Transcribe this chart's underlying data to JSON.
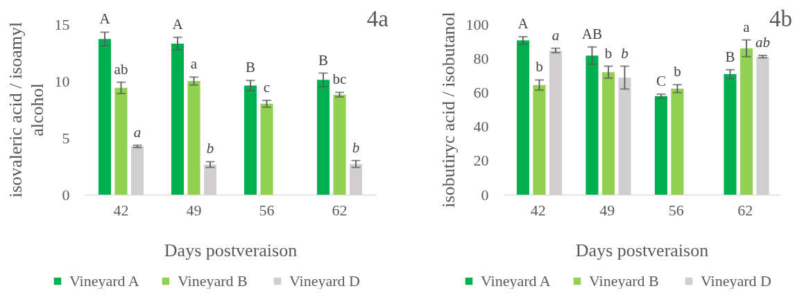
{
  "chart_data": [
    {
      "type": "bar",
      "annotations": [
        "4a"
      ],
      "xlabel": "Days postveraison",
      "ylabel": "isovaleric acid / isoamyl alcohol",
      "categories": [
        "42",
        "49",
        "56",
        "62"
      ],
      "series": [
        {
          "name": "Vineyard A",
          "color": "#00b050",
          "values": [
            13.7,
            13.3,
            9.6,
            10.1
          ],
          "errors": [
            0.6,
            0.55,
            0.45,
            0.6
          ],
          "value_labels": [
            "A",
            "A",
            "B",
            "B"
          ]
        },
        {
          "name": "Vineyard  B",
          "color": "#92d050",
          "values": [
            9.4,
            10.0,
            8.0,
            8.8
          ],
          "errors": [
            0.5,
            0.35,
            0.3,
            0.2
          ],
          "value_labels": [
            "ab",
            "a",
            "c",
            "bc"
          ]
        },
        {
          "name": "Vineyard D",
          "color": "#d0cece",
          "values": [
            4.25,
            2.65,
            null,
            2.7
          ],
          "errors": [
            0.1,
            0.25,
            null,
            0.3
          ],
          "value_labels": [
            "a",
            "b",
            null,
            "b"
          ]
        }
      ],
      "ylim": [
        0,
        15
      ],
      "yticks": [
        0,
        5,
        10,
        15
      ],
      "legend": "bottom"
    },
    {
      "type": "bar",
      "annotations": [
        "4b"
      ],
      "xlabel": "Days postveraison",
      "ylabel": "isobutiryc acid / isobutanol",
      "categories": [
        "42",
        "49",
        "56",
        "62"
      ],
      "series": [
        {
          "name": "Vineyard A",
          "color": "#00b050",
          "values": [
            90.5,
            81.6,
            57.8,
            70.7
          ],
          "errors": [
            2.2,
            5.1,
            1.2,
            2.6
          ],
          "value_labels": [
            "A",
            "AB",
            "C",
            "B"
          ]
        },
        {
          "name": "Vineyard  B",
          "color": "#92d050",
          "values": [
            64.3,
            71.9,
            62.2,
            85.9
          ],
          "errors": [
            3.0,
            3.5,
            2.3,
            4.9
          ],
          "value_labels": [
            "b",
            "b",
            "b",
            "a"
          ]
        },
        {
          "name": "Vineyard D",
          "color": "#d0cece",
          "values": [
            84.6,
            68.7,
            null,
            81.0
          ],
          "errors": [
            1.3,
            6.7,
            null,
            0.7
          ],
          "value_labels": [
            "a",
            "b",
            null,
            "ab"
          ]
        }
      ],
      "ylim": [
        0,
        100
      ],
      "yticks": [
        0,
        20,
        40,
        60,
        80,
        100
      ],
      "legend": "bottom"
    }
  ]
}
